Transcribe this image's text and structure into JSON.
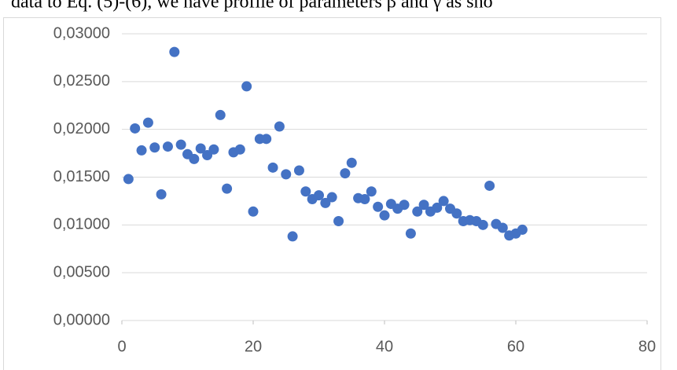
{
  "page_text": "data to Eq. (5)-(6), we have profile of parameters β and γ as sho",
  "chart_data": {
    "type": "scatter",
    "color": "#4472c4",
    "grid": true,
    "x": [
      1,
      2,
      3,
      4,
      5,
      6,
      7,
      8,
      9,
      10,
      11,
      12,
      13,
      14,
      15,
      16,
      17,
      18,
      19,
      20,
      21,
      22,
      23,
      24,
      25,
      26,
      27,
      28,
      29,
      30,
      31,
      32,
      33,
      34,
      35,
      36,
      37,
      38,
      39,
      40,
      41,
      42,
      43,
      44,
      45,
      46,
      47,
      48,
      49,
      50,
      51,
      52,
      53,
      54,
      55,
      56,
      57,
      58,
      59,
      60,
      61
    ],
    "values": [
      0.0148,
      0.0201,
      0.0178,
      0.0207,
      0.0181,
      0.0132,
      0.0182,
      0.0281,
      0.0184,
      0.0174,
      0.0169,
      0.018,
      0.0173,
      0.0179,
      0.0215,
      0.0138,
      0.0176,
      0.0179,
      0.0245,
      0.0114,
      0.019,
      0.019,
      0.016,
      0.0203,
      0.0153,
      0.0088,
      0.0157,
      0.0135,
      0.0127,
      0.0131,
      0.0123,
      0.0129,
      0.0104,
      0.0154,
      0.0165,
      0.0128,
      0.0127,
      0.0135,
      0.0119,
      0.011,
      0.0122,
      0.0117,
      0.0121,
      0.0091,
      0.0114,
      0.0121,
      0.0114,
      0.0118,
      0.0125,
      0.0117,
      0.0112,
      0.0104,
      0.0105,
      0.0104,
      0.01,
      0.0141,
      0.0101,
      0.0097,
      0.0089,
      0.0091,
      0.0095
    ],
    "xlim": [
      0,
      80
    ],
    "xticks": [
      0,
      20,
      40,
      60,
      80
    ],
    "ylim": [
      0,
      0.03
    ],
    "yticks": [
      {
        "value": 0,
        "label": "0,00000"
      },
      {
        "value": 0.005,
        "label": "0,00500"
      },
      {
        "value": 0.01,
        "label": "0,01000"
      },
      {
        "value": 0.015,
        "label": "0,01500"
      },
      {
        "value": 0.02,
        "label": "0,02000"
      },
      {
        "value": 0.025,
        "label": "0,02500"
      },
      {
        "value": 0.03,
        "label": "0,03000"
      }
    ]
  }
}
